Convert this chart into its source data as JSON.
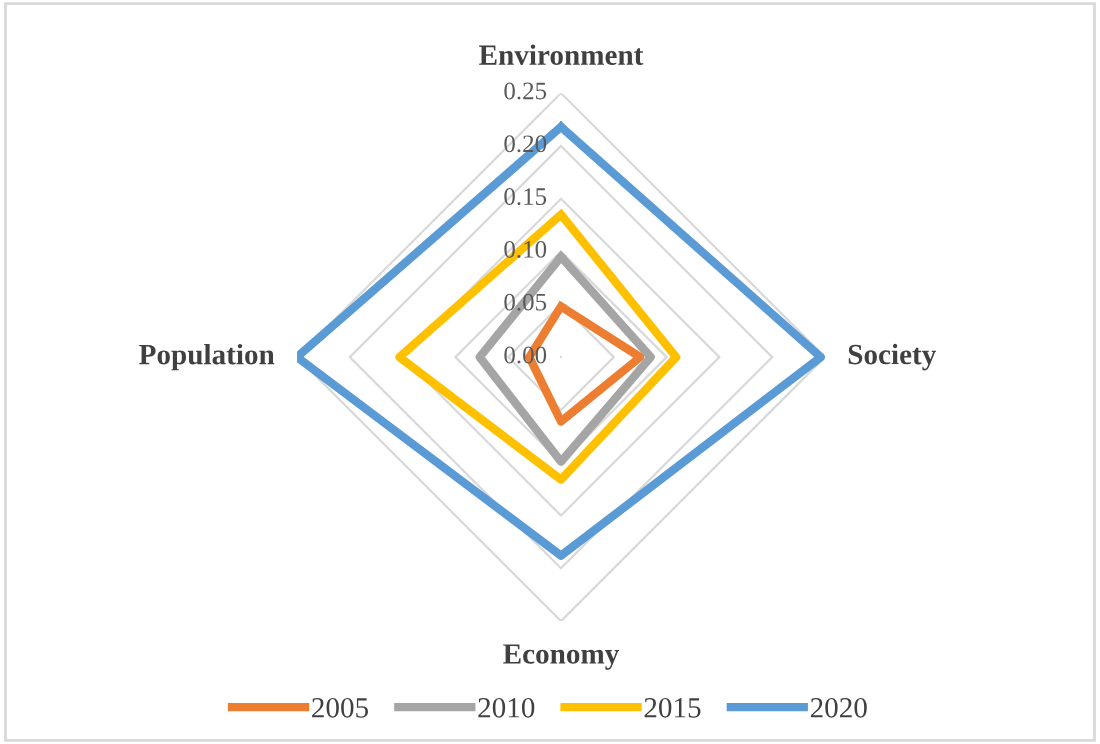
{
  "chart_data": {
    "type": "radar",
    "categories": [
      "Environment",
      "Society",
      "Economy",
      "Population"
    ],
    "series": [
      {
        "name": "2005",
        "color": "#ed7d31",
        "values": [
          0.048,
          0.075,
          0.061,
          0.03
        ]
      },
      {
        "name": "2010",
        "color": "#a5a5a5",
        "values": [
          0.095,
          0.085,
          0.099,
          0.077
        ]
      },
      {
        "name": "2015",
        "color": "#ffc000",
        "values": [
          0.135,
          0.109,
          0.116,
          0.153
        ]
      },
      {
        "name": "2020",
        "color": "#5b9bd5",
        "values": [
          0.218,
          0.246,
          0.188,
          0.25
        ]
      }
    ],
    "ylim": [
      0,
      0.25
    ],
    "yticks": [
      {
        "value": 0,
        "label": "0.00"
      },
      {
        "value": 0.05,
        "label": "0.05"
      },
      {
        "value": 0.1,
        "label": "0.10"
      },
      {
        "value": 0.15,
        "label": "0.15"
      },
      {
        "value": 0.2,
        "label": "0.20"
      },
      {
        "value": 0.25,
        "label": "0.25"
      }
    ],
    "grid": true,
    "legend": "bottom",
    "marker": "none",
    "line_style": "solid"
  }
}
